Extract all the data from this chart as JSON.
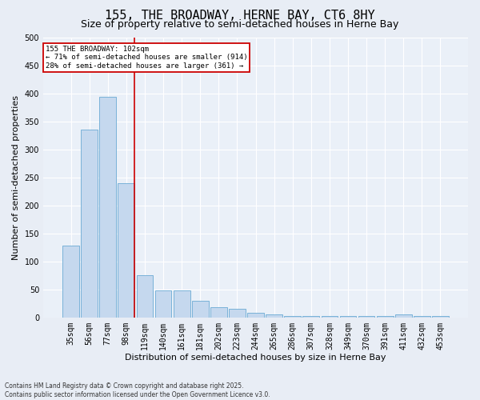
{
  "title1": "155, THE BROADWAY, HERNE BAY, CT6 8HY",
  "title2": "Size of property relative to semi-detached houses in Herne Bay",
  "xlabel": "Distribution of semi-detached houses by size in Herne Bay",
  "ylabel": "Number of semi-detached properties",
  "footnote": "Contains HM Land Registry data © Crown copyright and database right 2025.\nContains public sector information licensed under the Open Government Licence v3.0.",
  "bin_labels": [
    "35sqm",
    "56sqm",
    "77sqm",
    "98sqm",
    "119sqm",
    "140sqm",
    "161sqm",
    "181sqm",
    "202sqm",
    "223sqm",
    "244sqm",
    "265sqm",
    "286sqm",
    "307sqm",
    "328sqm",
    "349sqm",
    "370sqm",
    "391sqm",
    "411sqm",
    "432sqm",
    "453sqm"
  ],
  "bar_values": [
    128,
    335,
    393,
    240,
    75,
    48,
    48,
    30,
    18,
    15,
    8,
    5,
    2,
    2,
    2,
    2,
    2,
    2,
    5,
    2,
    2
  ],
  "bar_color": "#c5d8ee",
  "bar_edge_color": "#6aaad4",
  "vline_x": 3.43,
  "vline_color": "#cc0000",
  "annotation_label": "155 THE BROADWAY: 102sqm",
  "smaller_pct": 71,
  "smaller_count": 914,
  "larger_pct": 28,
  "larger_count": 361,
  "annotation_box_color": "#ffffff",
  "annotation_box_edge": "#cc0000",
  "ylim": [
    0,
    500
  ],
  "yticks": [
    0,
    50,
    100,
    150,
    200,
    250,
    300,
    350,
    400,
    450,
    500
  ],
  "bg_color": "#e8edf5",
  "plot_bg_color": "#eaf0f8",
  "title1_fontsize": 11,
  "title2_fontsize": 9,
  "tick_fontsize": 7,
  "label_fontsize": 8,
  "footnote_fontsize": 5.5
}
